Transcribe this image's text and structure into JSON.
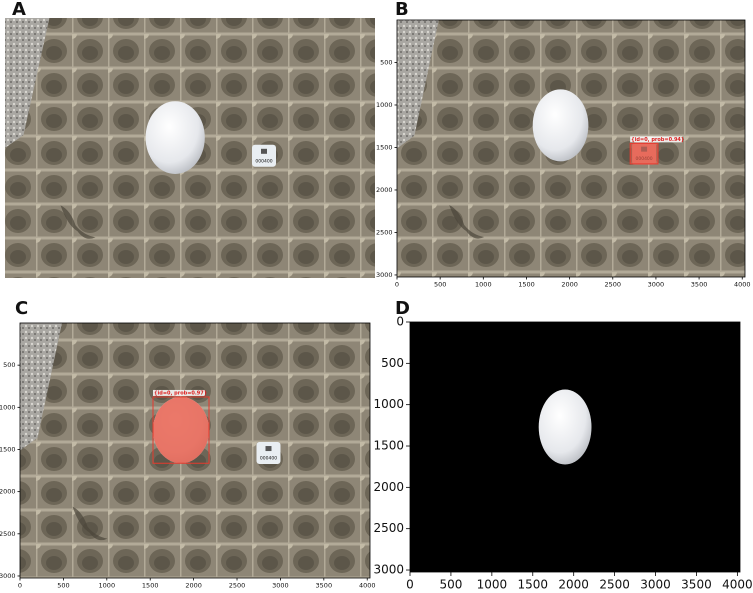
{
  "panels": [
    {
      "label": "A",
      "card": "000400"
    },
    {
      "label": "B",
      "card": "000400",
      "annotation": "{id=0, prob=0.94}",
      "xlim": [
        0,
        4032
      ],
      "ylim": [
        3024,
        0
      ],
      "xticks": [
        0,
        500,
        1000,
        1500,
        2000,
        2500,
        3000,
        3500,
        4000
      ],
      "yticks": [
        500,
        1000,
        1500,
        2000,
        2500,
        3000
      ]
    },
    {
      "label": "C",
      "card": "000400",
      "annotation": "{id=0, prob=0.97}",
      "xlim": [
        0,
        4032
      ],
      "ylim": [
        3024,
        0
      ],
      "xticks": [
        0,
        500,
        1000,
        1500,
        2000,
        2500,
        3000,
        3500,
        4000
      ],
      "yticks": [
        500,
        1000,
        1500,
        2000,
        2500,
        3000
      ]
    },
    {
      "label": "D",
      "xlim": [
        0,
        4032
      ],
      "ylim": [
        3024,
        0
      ],
      "xticks": [
        0,
        500,
        1000,
        1500,
        2000,
        2500,
        3000,
        3500,
        4000
      ],
      "yticks": [
        0,
        500,
        1000,
        1500,
        2000,
        2500,
        3000
      ]
    }
  ]
}
